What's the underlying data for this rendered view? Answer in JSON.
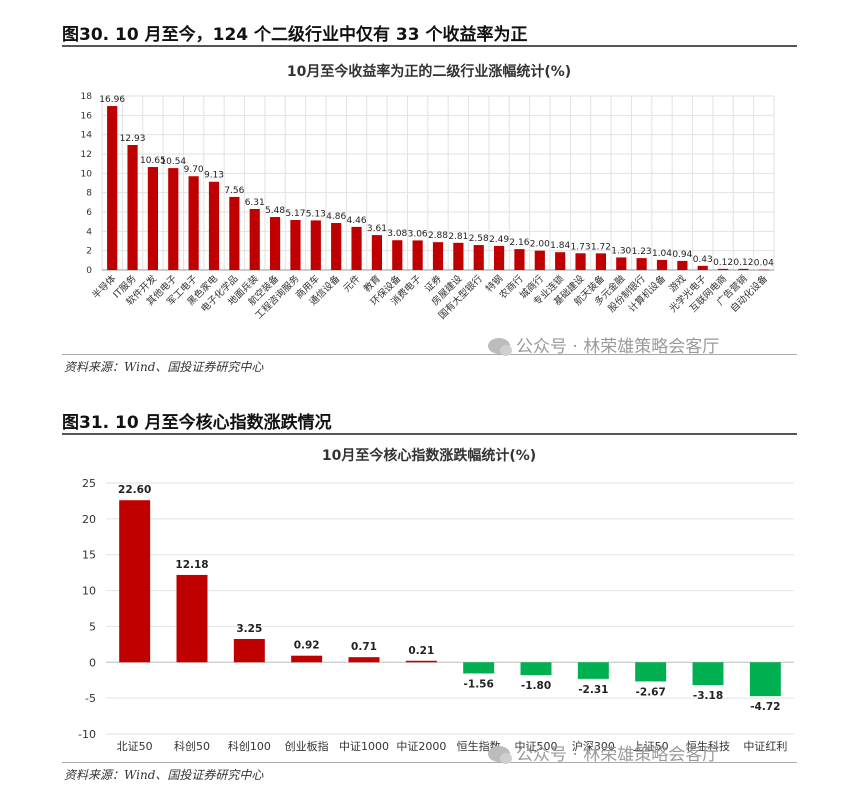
{
  "figures": [
    {
      "heading": "图30. 10 月至今，124 个二级行业中仅有 33 个收益率为正",
      "source": "资料来源：Wind、国投证券研究中心",
      "watermark": "公众号 · 林荣雄策略会客厅"
    },
    {
      "heading": "图31. 10 月至今核心指数涨跌情况",
      "source": "资料来源：Wind、国投证券研究中心",
      "watermark": "公众号 · 林荣雄策略会客厅"
    }
  ],
  "chart_data": [
    {
      "type": "bar",
      "title": "10月至今收益率为正的二级行业涨幅统计(%)",
      "xlabel": "",
      "ylabel": "",
      "ylim": [
        0,
        18
      ],
      "yticks": [
        0,
        2,
        4,
        6,
        8,
        10,
        12,
        14,
        16,
        18
      ],
      "grid": true,
      "legend": "none",
      "bar_color": "#c00000",
      "categories": [
        "半导体",
        "IT服务",
        "软件开发",
        "其他电子",
        "军工电子",
        "黑色家电",
        "电子化学品",
        "地面兵装",
        "航空装备",
        "工程咨询服务",
        "商用车",
        "通信设备",
        "元件",
        "教育",
        "环保设备",
        "消费电子",
        "证券",
        "房屋建设",
        "国有大型银行",
        "特钢",
        "农商行",
        "城商行",
        "专业连锁",
        "基础建设",
        "航天装备",
        "多元金融",
        "股份制银行",
        "计算机设备",
        "游戏",
        "光学光电子",
        "互联网电商",
        "广告营销",
        "自动化设备"
      ],
      "values": [
        16.96,
        12.93,
        10.65,
        10.54,
        9.7,
        9.13,
        7.56,
        6.31,
        5.48,
        5.17,
        5.13,
        4.86,
        4.46,
        3.61,
        3.08,
        3.06,
        2.88,
        2.81,
        2.58,
        2.49,
        2.16,
        2.0,
        1.84,
        1.73,
        1.72,
        1.3,
        1.23,
        1.04,
        0.94,
        0.43,
        0.12,
        0.12,
        0.04
      ],
      "value_labels": [
        "16.96",
        "12.93",
        "10.65",
        "10.54",
        "9.70",
        "9.13",
        "7.56",
        "6.31",
        "5.48",
        "5.17",
        "5.13",
        "4.86",
        "4.46",
        "3.61",
        "3.08",
        "3.06",
        "2.88",
        "2.81",
        "2.58",
        "2.49",
        "2.16",
        "2.00",
        "1.84",
        "1.73",
        "1.72",
        "1.30",
        "1.23",
        "1.04",
        "0.94",
        "0.43",
        "0.12",
        "0.12",
        "0.04"
      ]
    },
    {
      "type": "bar",
      "title": "10月至今核心指数涨跌幅统计(%)",
      "xlabel": "",
      "ylabel": "",
      "ylim": [
        -10,
        25
      ],
      "yticks": [
        -10,
        -5,
        0,
        5,
        10,
        15,
        20,
        25
      ],
      "grid": true,
      "legend": "none",
      "positive_color": "#c00000",
      "negative_color": "#00b050",
      "categories": [
        "北证50",
        "科创50",
        "科创100",
        "创业板指",
        "中证1000",
        "中证2000",
        "恒生指数",
        "中证500",
        "沪深300",
        "上证50",
        "恒生科技",
        "中证红利"
      ],
      "values": [
        22.6,
        12.18,
        3.25,
        0.92,
        0.71,
        0.21,
        -1.56,
        -1.8,
        -2.31,
        -2.67,
        -3.18,
        -4.72
      ],
      "value_labels": [
        "22.60",
        "12.18",
        "3.25",
        "0.92",
        "0.71",
        "0.21",
        "-1.56",
        "-1.80",
        "-2.31",
        "-2.67",
        "-3.18",
        "-4.72"
      ]
    }
  ]
}
